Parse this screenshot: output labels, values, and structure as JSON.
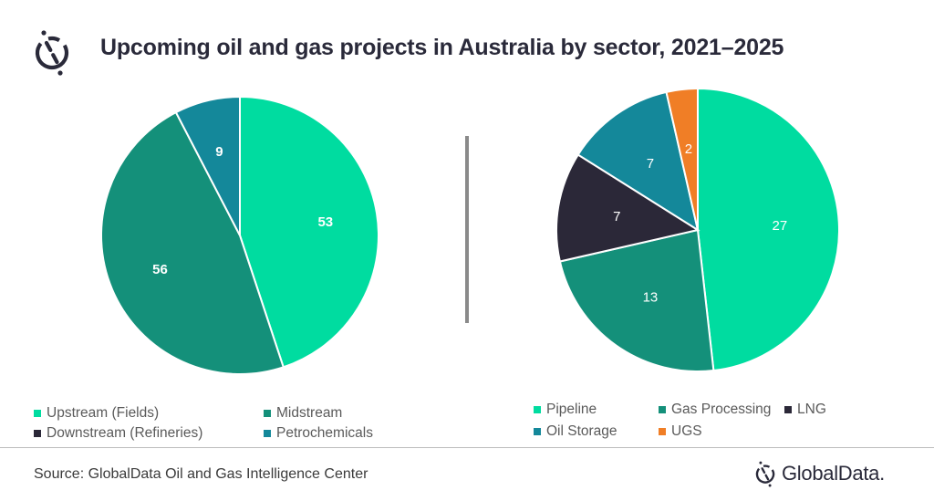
{
  "header": {
    "title": "Upcoming oil and gas projects in Australia by sector, 2021–2025",
    "logo_icon": "globaldata-logo-icon"
  },
  "colors": {
    "bright_green": "#00DCA0",
    "dark_green": "#14907A",
    "navy": "#2B2838",
    "teal": "#14889A",
    "orange": "#F07E26"
  },
  "chart_data": [
    {
      "type": "pie",
      "title": "Upcoming oil and gas projects in Australia by sector, 2021–2025",
      "categories": [
        "Upstream (Fields)",
        "Midstream",
        "Downstream (Refineries)",
        "Petrochemicals"
      ],
      "values": [
        53,
        56,
        0,
        9
      ],
      "colors": [
        "#00DCA0",
        "#14907A",
        "#2B2838",
        "#14889A"
      ],
      "labels_shown": [
        "53",
        "56",
        "",
        "9"
      ],
      "legend_position": "bottom"
    },
    {
      "type": "pie",
      "title": "Midstream breakdown",
      "categories": [
        "Pipeline",
        "Gas Processing",
        "LNG",
        "Oil Storage",
        "UGS"
      ],
      "values": [
        27,
        13,
        7,
        7,
        2
      ],
      "colors": [
        "#00DCA0",
        "#14907A",
        "#2B2838",
        "#14889A",
        "#F07E26"
      ],
      "labels_shown": [
        "27",
        "13",
        "7",
        "7",
        "2"
      ],
      "legend_position": "bottom"
    }
  ],
  "legend_left": [
    {
      "label": "Upstream (Fields)",
      "color": "#00DCA0"
    },
    {
      "label": "Midstream",
      "color": "#14907A"
    },
    {
      "label": "Downstream (Refineries)",
      "color": "#2B2838"
    },
    {
      "label": "Petrochemicals",
      "color": "#14889A"
    }
  ],
  "legend_right": [
    {
      "label": "Pipeline",
      "color": "#00DCA0"
    },
    {
      "label": "Gas Processing",
      "color": "#14907A"
    },
    {
      "label": "LNG",
      "color": "#2B2838"
    },
    {
      "label": "Oil Storage",
      "color": "#14889A"
    },
    {
      "label": "UGS",
      "color": "#F07E26"
    }
  ],
  "footer": {
    "source": "Source: GlobalData Oil and Gas Intelligence Center",
    "brand": "GlobalData."
  }
}
